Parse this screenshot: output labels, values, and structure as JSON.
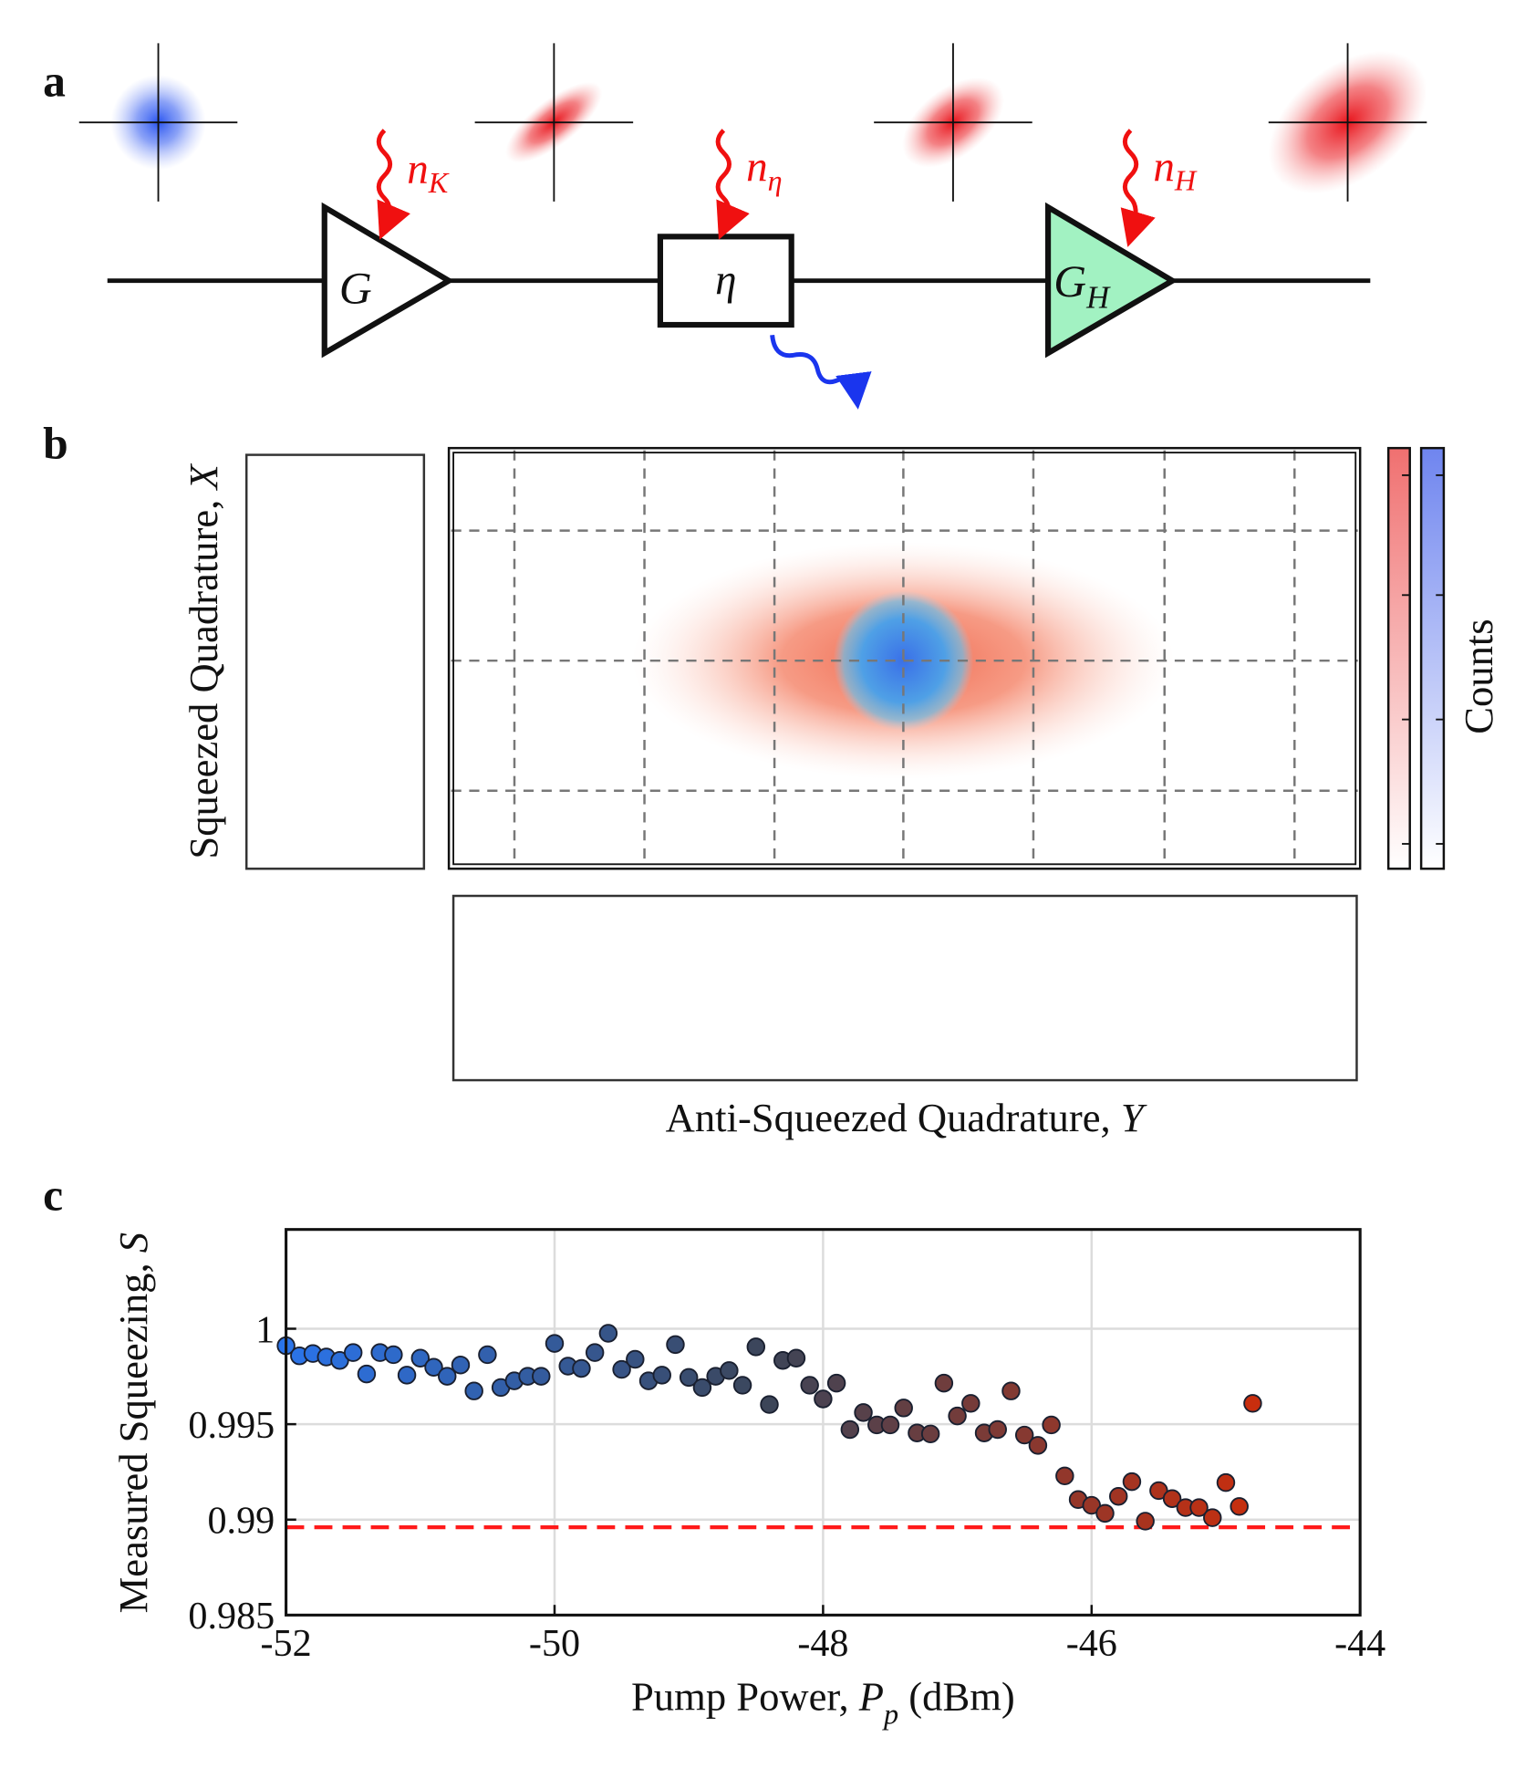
{
  "panel_labels": [
    "a",
    "b",
    "c"
  ],
  "diagram": {
    "amplifier_1": {
      "label": "G"
    },
    "noise_1": {
      "base": "n",
      "sub": "K"
    },
    "attenuator": {
      "label": "η"
    },
    "noise_2": {
      "base": "n",
      "sub": "η"
    },
    "amplifier_2": {
      "base": "G",
      "sub": "H"
    },
    "noise_3": {
      "base": "n",
      "sub": "H"
    }
  },
  "histogram_panel": {
    "ylabel": [
      "Squeezed Quadrature, ",
      "X"
    ],
    "xlabel": [
      "Anti-Squeezed Quadrature, ",
      "Y"
    ],
    "colorbar_label": "Counts"
  },
  "chart_data": {
    "type": "scatter",
    "xlabel": [
      "Pump Power, ",
      "P",
      "p",
      " (dBm)"
    ],
    "ylabel": [
      "Measured Squeezing, ",
      "S"
    ],
    "xlim": [
      -52,
      -44
    ],
    "ylim": [
      0.985,
      1.0052
    ],
    "xticks": [
      -52,
      -50,
      -48,
      -46,
      -44
    ],
    "yticks": [
      0.985,
      0.99,
      0.995,
      1
    ],
    "grid": true,
    "hline": {
      "value": 0.9896,
      "color": "#ff1a1a"
    },
    "series": [
      {
        "colors": [
          "#2a74ea",
          "#3c4558",
          "#c82e0e"
        ],
        "x": [
          -52,
          -51.9,
          -51.8,
          -51.7,
          -51.6,
          -51.5,
          -51.4,
          -51.3,
          -51.2,
          -51.1,
          -51,
          -50.9,
          -50.8,
          -50.7,
          -50.6,
          -50.5,
          -50.4,
          -50.3,
          -50.2,
          -50.1,
          -50,
          -49.9,
          -49.8,
          -49.7,
          -49.6,
          -49.5,
          -49.4,
          -49.3,
          -49.2,
          -49.1,
          -49,
          -48.9,
          -48.8,
          -48.7,
          -48.6,
          -48.5,
          -48.4,
          -48.3,
          -48.2,
          -48.1,
          -48,
          -47.9,
          -47.8,
          -47.7,
          -47.6,
          -47.5,
          -47.4,
          -47.3,
          -47.2,
          -47.1,
          -47,
          -46.9,
          -46.8,
          -46.7,
          -46.6,
          -46.5,
          -46.4,
          -46.3,
          -46.2,
          -46.1,
          -46,
          -45.9,
          -45.8,
          -45.7,
          -45.6,
          -45.5,
          -45.4,
          -45.3,
          -45.2,
          -45.1,
          -45,
          -44.9,
          -44.8
        ],
        "values": [
          0.99911,
          0.99858,
          0.9987,
          0.99852,
          0.99834,
          0.99875,
          0.99763,
          0.99875,
          0.99864,
          0.99757,
          0.99846,
          0.99798,
          0.99751,
          0.9981,
          0.99674,
          0.99864,
          0.99692,
          0.99727,
          0.99751,
          0.99751,
          0.99923,
          0.99804,
          0.99792,
          0.99875,
          0.99976,
          0.99787,
          0.9984,
          0.99727,
          0.99757,
          0.99917,
          0.99745,
          0.99692,
          0.99751,
          0.99781,
          0.99704,
          0.99905,
          0.99603,
          0.99834,
          0.99846,
          0.99704,
          0.99632,
          0.99715,
          0.99472,
          0.99561,
          0.99496,
          0.99496,
          0.99585,
          0.99454,
          0.99449,
          0.99715,
          0.99543,
          0.99609,
          0.99454,
          0.99472,
          0.99674,
          0.99443,
          0.99389,
          0.99496,
          0.99229,
          0.99105,
          0.99075,
          0.99033,
          0.99122,
          0.99199,
          0.98992,
          0.99152,
          0.9911,
          0.99063,
          0.99063,
          0.9901,
          0.99194,
          0.99069,
          0.99609
        ]
      }
    ]
  }
}
